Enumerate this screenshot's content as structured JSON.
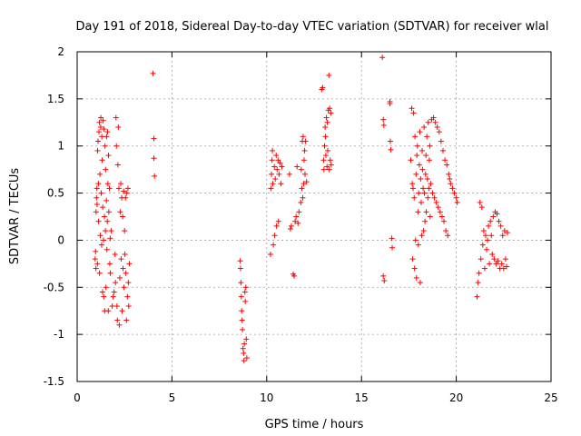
{
  "chart_data": {
    "type": "scatter",
    "title": "Day 191 of 2018, Sidereal Day-to-day VTEC variation (SDTVAR) for receiver wlal",
    "xlabel": "GPS time / hours",
    "ylabel": "SDTVAR / TECUs",
    "xlim": [
      0,
      25
    ],
    "ylim": [
      -1.5,
      2
    ],
    "xticks": [
      "0",
      "5",
      "10",
      "15",
      "20",
      "25"
    ],
    "yticks": [
      "-1.5",
      "-1",
      "-0.5",
      "0",
      "0.5",
      "1",
      "1.5",
      "2"
    ],
    "grid": true,
    "marker": "+",
    "color": "#ff0000",
    "series": [
      {
        "name": "SDTVAR",
        "points": [
          [
            0.95,
            -0.2
          ],
          [
            0.97,
            -0.12
          ],
          [
            0.99,
            -0.3
          ],
          [
            1.0,
            0.3
          ],
          [
            1.02,
            0.45
          ],
          [
            1.04,
            0.55
          ],
          [
            1.05,
            0.38
          ],
          [
            1.07,
            -0.25
          ],
          [
            1.08,
            0.95
          ],
          [
            1.1,
            1.05
          ],
          [
            1.12,
            0.6
          ],
          [
            1.13,
            0.2
          ],
          [
            1.15,
            1.15
          ],
          [
            1.17,
            1.25
          ],
          [
            1.18,
            -0.35
          ],
          [
            1.2,
            0.7
          ],
          [
            1.22,
            0.05
          ],
          [
            1.24,
            1.2
          ],
          [
            1.25,
            1.3
          ],
          [
            1.27,
            0.5
          ],
          [
            1.29,
            -0.05
          ],
          [
            1.3,
            1.1
          ],
          [
            1.32,
            0.85
          ],
          [
            1.34,
            -0.55
          ],
          [
            1.35,
            0.35
          ],
          [
            1.37,
            1.27
          ],
          [
            1.39,
            0.0
          ],
          [
            1.4,
            -0.6
          ],
          [
            1.42,
            1.18
          ],
          [
            1.44,
            0.25
          ],
          [
            1.45,
            -0.75
          ],
          [
            1.47,
            1.0
          ],
          [
            1.49,
            0.1
          ],
          [
            1.5,
            0.75
          ],
          [
            1.52,
            -0.5
          ],
          [
            1.54,
            0.42
          ],
          [
            1.55,
            1.1
          ],
          [
            1.57,
            -0.1
          ],
          [
            1.59,
            0.2
          ],
          [
            1.6,
            1.15
          ],
          [
            1.62,
            0.6
          ],
          [
            1.64,
            -0.75
          ],
          [
            1.65,
            0.9
          ],
          [
            1.67,
            0.3
          ],
          [
            1.7,
            0.55
          ],
          [
            1.72,
            -0.25
          ],
          [
            1.74,
            0.02
          ],
          [
            1.75,
            -0.35
          ],
          [
            1.8,
            0.1
          ],
          [
            1.85,
            -0.7
          ],
          [
            1.9,
            -0.6
          ],
          [
            1.95,
            -0.55
          ],
          [
            2.0,
            -0.15
          ],
          [
            2.02,
            -0.45
          ],
          [
            2.05,
            1.3
          ],
          [
            2.07,
            1.0
          ],
          [
            2.1,
            -0.7
          ],
          [
            2.12,
            -0.85
          ],
          [
            2.15,
            0.8
          ],
          [
            2.17,
            1.2
          ],
          [
            2.2,
            0.55
          ],
          [
            2.22,
            -0.9
          ],
          [
            2.25,
            -0.4
          ],
          [
            2.27,
            0.3
          ],
          [
            2.3,
            0.6
          ],
          [
            2.32,
            -0.2
          ],
          [
            2.35,
            0.45
          ],
          [
            2.37,
            -0.75
          ],
          [
            2.4,
            0.25
          ],
          [
            2.42,
            -0.3
          ],
          [
            2.45,
            0.52
          ],
          [
            2.47,
            -0.5
          ],
          [
            2.5,
            0.1
          ],
          [
            2.52,
            -0.15
          ],
          [
            2.55,
            0.45
          ],
          [
            2.57,
            -0.35
          ],
          [
            2.6,
            -0.85
          ],
          [
            2.62,
            0.5
          ],
          [
            2.65,
            -0.6
          ],
          [
            2.68,
            0.55
          ],
          [
            2.7,
            -0.45
          ],
          [
            2.72,
            -0.7
          ],
          [
            2.75,
            -0.25
          ],
          [
            4.0,
            1.77
          ],
          [
            4.05,
            1.08
          ],
          [
            4.05,
            0.87
          ],
          [
            4.08,
            0.68
          ],
          [
            8.6,
            -0.22
          ],
          [
            8.62,
            -0.3
          ],
          [
            8.64,
            -0.45
          ],
          [
            8.66,
            -0.6
          ],
          [
            8.68,
            -0.75
          ],
          [
            8.7,
            -0.85
          ],
          [
            8.72,
            -0.95
          ],
          [
            8.75,
            -1.15
          ],
          [
            8.78,
            -1.2
          ],
          [
            8.8,
            -1.28
          ],
          [
            8.82,
            -1.1
          ],
          [
            8.85,
            -0.55
          ],
          [
            8.87,
            -0.65
          ],
          [
            8.9,
            -0.5
          ],
          [
            8.92,
            -1.05
          ],
          [
            8.95,
            -1.25
          ],
          [
            10.2,
            -0.15
          ],
          [
            10.22,
            0.55
          ],
          [
            10.25,
            0.7
          ],
          [
            10.28,
            0.85
          ],
          [
            10.3,
            0.95
          ],
          [
            10.32,
            0.6
          ],
          [
            10.35,
            -0.05
          ],
          [
            10.4,
            0.78
          ],
          [
            10.42,
            0.05
          ],
          [
            10.45,
            0.65
          ],
          [
            10.5,
            0.9
          ],
          [
            10.52,
            0.15
          ],
          [
            10.55,
            0.75
          ],
          [
            10.6,
            0.85
          ],
          [
            10.62,
            0.2
          ],
          [
            10.65,
            0.7
          ],
          [
            10.7,
            0.82
          ],
          [
            10.75,
            0.6
          ],
          [
            10.8,
            0.78
          ],
          [
            11.2,
            0.7
          ],
          [
            11.25,
            0.12
          ],
          [
            11.3,
            0.15
          ],
          [
            11.4,
            -0.36
          ],
          [
            11.45,
            -0.38
          ],
          [
            11.5,
            0.2
          ],
          [
            11.55,
            0.25
          ],
          [
            11.6,
            0.78
          ],
          [
            11.65,
            0.18
          ],
          [
            11.7,
            0.3
          ],
          [
            11.8,
            0.4
          ],
          [
            11.82,
            0.75
          ],
          [
            11.85,
            0.55
          ],
          [
            11.88,
            1.05
          ],
          [
            11.9,
            0.45
          ],
          [
            11.92,
            1.1
          ],
          [
            11.95,
            0.6
          ],
          [
            11.97,
            0.85
          ],
          [
            12.0,
            0.95
          ],
          [
            12.02,
            0.7
          ],
          [
            12.05,
            1.05
          ],
          [
            12.1,
            0.62
          ],
          [
            12.9,
            1.6
          ],
          [
            12.95,
            1.62
          ],
          [
            13.0,
            0.85
          ],
          [
            13.02,
            0.75
          ],
          [
            13.05,
            1.0
          ],
          [
            13.08,
            1.2
          ],
          [
            13.1,
            1.1
          ],
          [
            13.12,
            0.9
          ],
          [
            13.15,
            1.3
          ],
          [
            13.18,
            0.78
          ],
          [
            13.2,
            1.25
          ],
          [
            13.22,
            0.95
          ],
          [
            13.25,
            1.38
          ],
          [
            13.28,
            1.75
          ],
          [
            13.3,
            0.75
          ],
          [
            13.32,
            1.4
          ],
          [
            13.35,
            0.85
          ],
          [
            13.38,
            1.35
          ],
          [
            13.4,
            0.8
          ],
          [
            16.1,
            1.94
          ],
          [
            16.15,
            -0.38
          ],
          [
            16.2,
            -0.43
          ],
          [
            16.5,
            1.47
          ],
          [
            16.15,
            1.28
          ],
          [
            16.18,
            1.22
          ],
          [
            16.5,
            1.45
          ],
          [
            16.52,
            1.05
          ],
          [
            16.55,
            0.96
          ],
          [
            16.6,
            0.02
          ],
          [
            16.62,
            -0.08
          ],
          [
            17.6,
            0.85
          ],
          [
            17.65,
            1.4
          ],
          [
            17.68,
            0.6
          ],
          [
            17.7,
            -0.2
          ],
          [
            17.72,
            0.55
          ],
          [
            17.75,
            1.35
          ],
          [
            17.78,
            0.45
          ],
          [
            17.8,
            -0.3
          ],
          [
            17.82,
            1.1
          ],
          [
            17.85,
            0.0
          ],
          [
            17.88,
            0.7
          ],
          [
            17.9,
            -0.4
          ],
          [
            17.92,
            0.9
          ],
          [
            17.95,
            1.0
          ],
          [
            17.98,
            0.3
          ],
          [
            18.0,
            -0.05
          ],
          [
            18.02,
            0.5
          ],
          [
            18.05,
            0.8
          ],
          [
            18.08,
            1.15
          ],
          [
            18.1,
            -0.45
          ],
          [
            18.12,
            0.65
          ],
          [
            18.15,
            0.4
          ],
          [
            18.18,
            0.05
          ],
          [
            18.2,
            0.95
          ],
          [
            18.22,
            0.75
          ],
          [
            18.25,
            0.55
          ],
          [
            18.28,
            0.1
          ],
          [
            18.3,
            1.2
          ],
          [
            18.32,
            0.5
          ],
          [
            18.35,
            0.2
          ],
          [
            18.38,
            0.7
          ],
          [
            18.4,
            0.9
          ],
          [
            18.42,
            0.3
          ],
          [
            18.45,
            1.1
          ],
          [
            18.48,
            0.65
          ],
          [
            18.5,
            0.45
          ],
          [
            18.52,
            1.25
          ],
          [
            18.55,
            0.55
          ],
          [
            18.58,
            0.85
          ],
          [
            18.6,
            1.0
          ],
          [
            18.62,
            0.25
          ],
          [
            18.65,
            0.6
          ],
          [
            18.7,
            1.28
          ],
          [
            18.75,
            0.5
          ],
          [
            18.8,
            1.3
          ],
          [
            18.85,
            0.45
          ],
          [
            18.9,
            1.25
          ],
          [
            18.95,
            0.4
          ],
          [
            19.0,
            1.2
          ],
          [
            19.05,
            0.35
          ],
          [
            19.1,
            1.15
          ],
          [
            19.15,
            0.3
          ],
          [
            19.2,
            1.05
          ],
          [
            19.25,
            0.25
          ],
          [
            19.3,
            0.95
          ],
          [
            19.35,
            0.2
          ],
          [
            19.4,
            0.85
          ],
          [
            19.45,
            0.1
          ],
          [
            19.5,
            0.8
          ],
          [
            19.55,
            0.05
          ],
          [
            19.6,
            0.7
          ],
          [
            19.65,
            0.65
          ],
          [
            19.7,
            0.6
          ],
          [
            19.8,
            0.55
          ],
          [
            19.9,
            0.5
          ],
          [
            20.0,
            0.45
          ],
          [
            20.05,
            0.4
          ],
          [
            21.1,
            -0.6
          ],
          [
            21.15,
            -0.45
          ],
          [
            21.2,
            -0.35
          ],
          [
            21.25,
            0.4
          ],
          [
            21.3,
            -0.2
          ],
          [
            21.35,
            0.35
          ],
          [
            21.4,
            -0.05
          ],
          [
            21.45,
            0.1
          ],
          [
            21.5,
            -0.3
          ],
          [
            21.55,
            0.05
          ],
          [
            21.6,
            -0.1
          ],
          [
            21.65,
            0.0
          ],
          [
            21.7,
            0.15
          ],
          [
            21.75,
            -0.25
          ],
          [
            21.8,
            0.2
          ],
          [
            21.85,
            0.05
          ],
          [
            21.9,
            -0.15
          ],
          [
            21.95,
            0.25
          ],
          [
            22.0,
            -0.2
          ],
          [
            22.05,
            0.3
          ],
          [
            22.1,
            -0.25
          ],
          [
            22.15,
            0.28
          ],
          [
            22.2,
            -0.22
          ],
          [
            22.25,
            0.2
          ],
          [
            22.3,
            -0.3
          ],
          [
            22.35,
            0.15
          ],
          [
            22.4,
            -0.25
          ],
          [
            22.45,
            0.05
          ],
          [
            22.5,
            -0.3
          ],
          [
            22.55,
            0.1
          ],
          [
            22.6,
            -0.2
          ],
          [
            22.65,
            -0.28
          ],
          [
            22.7,
            0.08
          ]
        ]
      }
    ]
  }
}
